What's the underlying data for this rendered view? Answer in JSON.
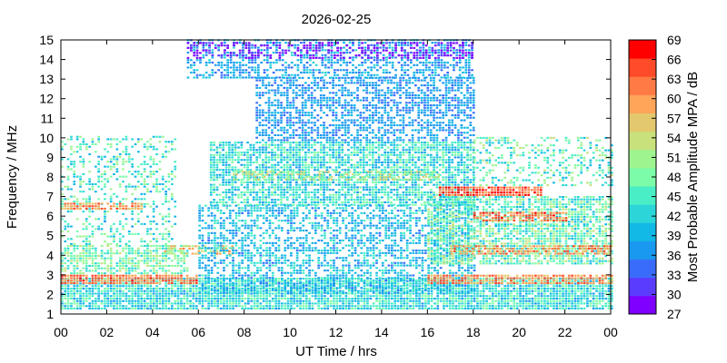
{
  "chart_data": {
    "type": "heatmap",
    "title": "2026-02-25",
    "xlabel": "UT Time / hrs",
    "ylabel": "Frequency / MHz",
    "colorbar_label": "Most Probable Amplitude MPA / dB",
    "xlim": [
      0,
      24
    ],
    "ylim": [
      1,
      15
    ],
    "x_ticks": [
      "00",
      "02",
      "04",
      "06",
      "08",
      "10",
      "12",
      "14",
      "16",
      "18",
      "20",
      "22",
      "00"
    ],
    "y_ticks": [
      1,
      2,
      3,
      4,
      5,
      6,
      7,
      8,
      9,
      10,
      11,
      12,
      13,
      14,
      15
    ],
    "colorbar_range": [
      27,
      69
    ],
    "colorbar_ticks": [
      27,
      30,
      33,
      36,
      39,
      42,
      45,
      48,
      51,
      54,
      57,
      60,
      63,
      66,
      69
    ],
    "colorbar_colors": [
      "#7f00ff",
      "#5a3cff",
      "#3a6cfc",
      "#1a99f0",
      "#12b8e6",
      "#2cd6d8",
      "#4aeec6",
      "#7cfca8",
      "#9ef58f",
      "#c8e17c",
      "#e3c86e",
      "#ffa55a",
      "#ff7a44",
      "#ff4b2a",
      "#ff0000"
    ],
    "grid": false,
    "legend": "colorbar-right",
    "bands": [
      {
        "t": [
          0,
          24
        ],
        "f": [
          1.2,
          2.8
        ],
        "level": 43,
        "spread": 6,
        "density": 0.9
      },
      {
        "t": [
          0,
          6
        ],
        "f": [
          2.5,
          3.0
        ],
        "level": 62,
        "spread": 5,
        "density": 0.9
      },
      {
        "t": [
          0,
          5.5
        ],
        "f": [
          3.0,
          4.5
        ],
        "level": 48,
        "spread": 6,
        "density": 0.7
      },
      {
        "t": [
          0,
          5
        ],
        "f": [
          4.5,
          10.0
        ],
        "level": 45,
        "spread": 7,
        "density": 0.3
      },
      {
        "t": [
          0,
          3.5
        ],
        "f": [
          6.3,
          6.6
        ],
        "level": 60,
        "spread": 5,
        "density": 0.8
      },
      {
        "t": [
          4.5,
          7.5
        ],
        "f": [
          4.0,
          4.5
        ],
        "level": 56,
        "spread": 6,
        "density": 0.6
      },
      {
        "t": [
          6,
          18
        ],
        "f": [
          2.0,
          6.5
        ],
        "level": 40,
        "spread": 5,
        "density": 0.55
      },
      {
        "t": [
          6.5,
          18
        ],
        "f": [
          6.5,
          9.8
        ],
        "level": 43,
        "spread": 6,
        "density": 0.75
      },
      {
        "t": [
          8.5,
          18
        ],
        "f": [
          9.8,
          13.0
        ],
        "level": 37,
        "spread": 3,
        "density": 0.6
      },
      {
        "t": [
          5.5,
          18
        ],
        "f": [
          13.0,
          15.0
        ],
        "level": 38,
        "spread": 4,
        "density": 0.5
      },
      {
        "t": [
          5.5,
          18
        ],
        "f": [
          14.0,
          14.8
        ],
        "level": 29,
        "spread": 2,
        "density": 0.45
      },
      {
        "t": [
          16.5,
          21
        ],
        "f": [
          7.0,
          7.5
        ],
        "level": 64,
        "spread": 5,
        "density": 0.9
      },
      {
        "t": [
          16,
          24
        ],
        "f": [
          5.5,
          7.0
        ],
        "level": 46,
        "spread": 7,
        "density": 0.7
      },
      {
        "t": [
          18,
          22
        ],
        "f": [
          5.7,
          6.2
        ],
        "level": 62,
        "spread": 5,
        "density": 0.7
      },
      {
        "t": [
          16,
          24
        ],
        "f": [
          3.5,
          5.5
        ],
        "level": 47,
        "spread": 7,
        "density": 0.75
      },
      {
        "t": [
          17,
          24
        ],
        "f": [
          4.0,
          4.5
        ],
        "level": 60,
        "spread": 5,
        "density": 0.7
      },
      {
        "t": [
          16,
          24
        ],
        "f": [
          2.5,
          3.0
        ],
        "level": 60,
        "spread": 6,
        "density": 0.85
      },
      {
        "t": [
          18,
          24
        ],
        "f": [
          7.5,
          10.0
        ],
        "level": 46,
        "spread": 7,
        "density": 0.35
      },
      {
        "t": [
          7.5,
          16.5
        ],
        "f": [
          7.8,
          8.3
        ],
        "level": 52,
        "spread": 5,
        "density": 0.6
      }
    ]
  }
}
